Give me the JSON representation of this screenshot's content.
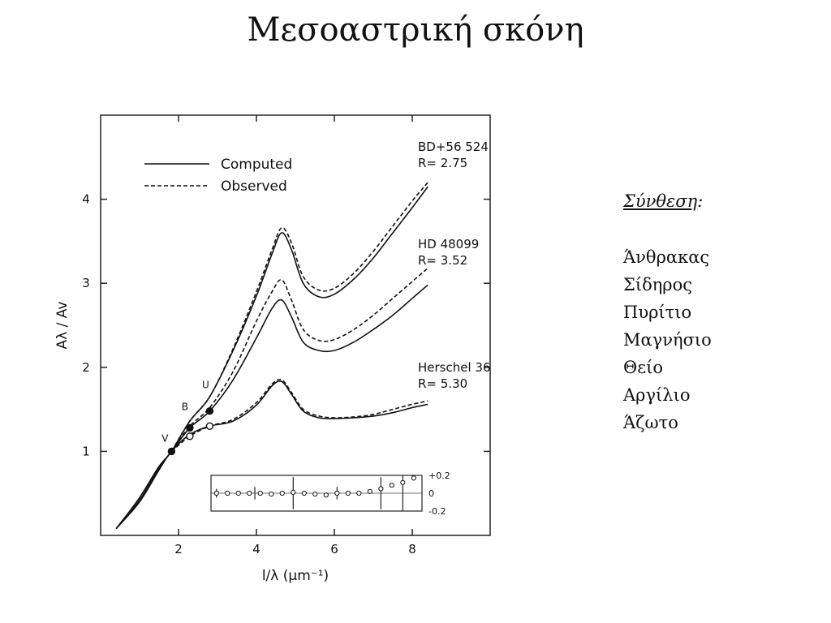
{
  "slide": {
    "title": "Μεσοαστρική σκόνη"
  },
  "composition": {
    "heading": "Σύνθεση",
    "heading_suffix": ":",
    "items": [
      "Άνθρακας",
      "Σίδηρος",
      "Πυρίτιο",
      "Μαγνήσιο",
      "Θείο",
      "Αργίλιο",
      "Άζωτο"
    ]
  },
  "chart_data": {
    "type": "line",
    "title": "",
    "xlabel": "l/λ (μm⁻¹)",
    "ylabel": "Aλ / Av",
    "xlim": [
      0,
      10
    ],
    "ylim": [
      0,
      5
    ],
    "x_ticks": [
      "2",
      "4",
      "6",
      "8"
    ],
    "y_ticks": [
      "1",
      "2",
      "3",
      "4"
    ],
    "legend": {
      "placement": "top-left",
      "entries": [
        {
          "label": "Computed",
          "style": "solid"
        },
        {
          "label": "Observed",
          "style": "dashed"
        }
      ]
    },
    "band_labels": [
      {
        "label": "V",
        "x": 1.82,
        "y": 1.0
      },
      {
        "label": "B",
        "x": 2.29,
        "y": 1.3
      },
      {
        "label": "U",
        "x": 2.78,
        "y": 1.5
      }
    ],
    "star_labels": [
      {
        "name": "BD+56 524",
        "r_label": "R= 2.75"
      },
      {
        "name": "HD 48099",
        "r_label": "R= 3.52"
      },
      {
        "name": "Herschel 36",
        "r_label": "R= 5.30"
      }
    ],
    "series": [
      {
        "star": "BD+56 524",
        "kind": "computed",
        "x": [
          0.4,
          1.0,
          1.5,
          1.82,
          2.29,
          2.8,
          3.4,
          4.0,
          4.4,
          4.65,
          4.9,
          5.2,
          5.6,
          6.0,
          6.5,
          7.0,
          7.5,
          8.0,
          8.4
        ],
        "y": [
          0.08,
          0.45,
          0.82,
          1.0,
          1.36,
          1.65,
          2.2,
          2.85,
          3.35,
          3.6,
          3.4,
          3.0,
          2.84,
          2.87,
          3.05,
          3.3,
          3.6,
          3.9,
          4.15
        ]
      },
      {
        "star": "BD+56 524",
        "kind": "observed",
        "x": [
          1.82,
          2.29,
          2.8,
          3.4,
          4.0,
          4.4,
          4.65,
          4.9,
          5.2,
          5.6,
          6.0,
          6.5,
          7.0,
          7.5,
          8.0,
          8.4
        ],
        "y": [
          1.0,
          1.36,
          1.65,
          2.22,
          2.9,
          3.4,
          3.66,
          3.48,
          3.08,
          2.92,
          2.94,
          3.12,
          3.38,
          3.68,
          3.98,
          4.2
        ]
      },
      {
        "star": "HD 48099",
        "kind": "computed",
        "x": [
          0.4,
          1.0,
          1.5,
          1.82,
          2.29,
          2.8,
          3.4,
          4.0,
          4.4,
          4.65,
          4.9,
          5.2,
          5.6,
          6.0,
          6.5,
          7.0,
          7.5,
          8.0,
          8.4
        ],
        "y": [
          0.08,
          0.42,
          0.8,
          1.0,
          1.28,
          1.48,
          1.85,
          2.35,
          2.7,
          2.8,
          2.6,
          2.3,
          2.2,
          2.2,
          2.3,
          2.45,
          2.62,
          2.82,
          2.98
        ]
      },
      {
        "star": "HD 48099",
        "kind": "observed",
        "x": [
          1.82,
          2.29,
          2.8,
          3.4,
          4.0,
          4.4,
          4.65,
          4.9,
          5.2,
          5.6,
          6.0,
          6.5,
          7.0,
          7.5,
          8.0,
          8.4
        ],
        "y": [
          1.0,
          1.3,
          1.52,
          1.95,
          2.55,
          2.9,
          3.04,
          2.8,
          2.45,
          2.32,
          2.33,
          2.45,
          2.62,
          2.82,
          3.02,
          3.18
        ]
      },
      {
        "star": "Herschel 36",
        "kind": "computed",
        "x": [
          0.4,
          1.0,
          1.5,
          1.82,
          2.29,
          2.8,
          3.4,
          4.0,
          4.4,
          4.65,
          4.9,
          5.2,
          5.6,
          6.0,
          6.5,
          7.0,
          7.5,
          8.0,
          8.4
        ],
        "y": [
          0.08,
          0.4,
          0.78,
          1.0,
          1.2,
          1.3,
          1.36,
          1.55,
          1.78,
          1.83,
          1.68,
          1.48,
          1.4,
          1.39,
          1.4,
          1.42,
          1.46,
          1.52,
          1.56
        ]
      },
      {
        "star": "Herschel 36",
        "kind": "observed",
        "x": [
          1.82,
          2.29,
          2.8,
          3.4,
          4.0,
          4.4,
          4.65,
          4.9,
          5.2,
          5.6,
          6.0,
          6.5,
          7.0,
          7.5,
          8.0,
          8.4
        ],
        "y": [
          1.0,
          1.18,
          1.3,
          1.38,
          1.58,
          1.8,
          1.85,
          1.7,
          1.5,
          1.42,
          1.4,
          1.41,
          1.44,
          1.5,
          1.56,
          1.6
        ]
      }
    ],
    "band_points": [
      {
        "x": 1.82,
        "y": 1.0,
        "marker": "filled"
      },
      {
        "x": 2.29,
        "y": 1.28,
        "marker": "filled"
      },
      {
        "x": 2.8,
        "y": 1.48,
        "marker": "filled"
      },
      {
        "x": 2.29,
        "y": 1.18,
        "marker": "open"
      },
      {
        "x": 2.8,
        "y": 1.3,
        "marker": "open"
      }
    ],
    "inset": {
      "description_ticks": [
        "+0.2",
        "0",
        "-0.2"
      ],
      "ylim": [
        -0.2,
        0.2
      ],
      "xlim": [
        1.0,
        8.7
      ],
      "residuals_x": [
        1.2,
        1.6,
        2.0,
        2.4,
        2.8,
        3.2,
        3.6,
        4.0,
        4.4,
        4.8,
        5.2,
        5.6,
        6.0,
        6.4,
        6.8,
        7.2,
        7.6,
        8.0,
        8.4
      ],
      "residuals_y": [
        0.0,
        0.0,
        0.0,
        0.0,
        0.0,
        -0.01,
        0.0,
        0.01,
        0.0,
        -0.01,
        -0.02,
        0.0,
        0.0,
        0.0,
        0.02,
        0.05,
        0.09,
        0.12,
        0.17
      ],
      "error_bars": [
        {
          "x": 1.2,
          "err": 0.05
        },
        {
          "x": 2.6,
          "err": 0.07
        },
        {
          "x": 4.0,
          "err": 0.18
        },
        {
          "x": 5.6,
          "err": 0.07
        },
        {
          "x": 7.2,
          "err": 0.18
        },
        {
          "x": 8.0,
          "err": 0.2
        }
      ]
    }
  }
}
